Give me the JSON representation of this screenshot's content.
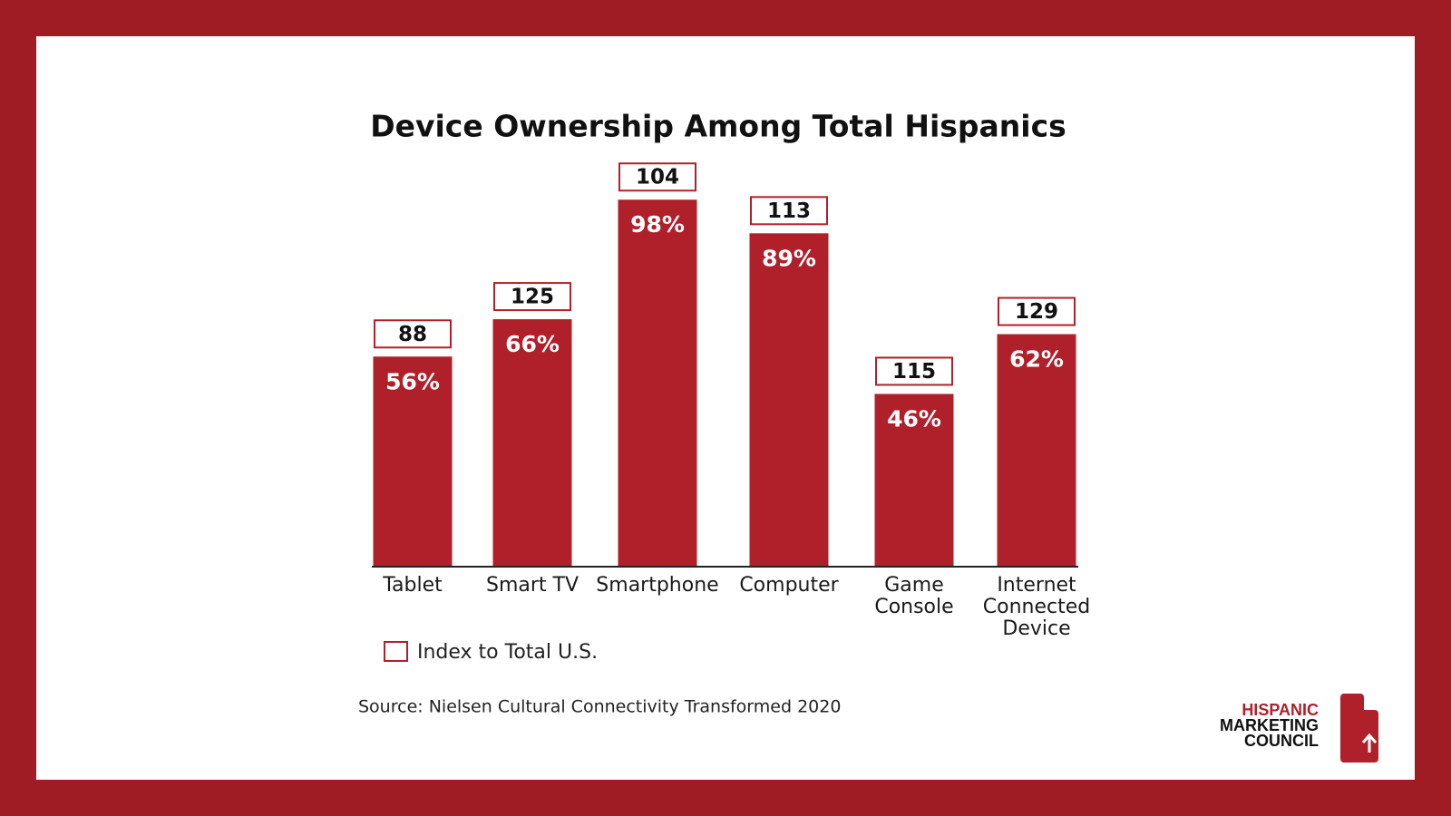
{
  "chart_data": {
    "type": "bar",
    "title": "Device Ownership Among Total Hispanics",
    "categories": [
      "Tablet",
      "Smart TV",
      "Smartphone",
      "Computer",
      "Game Console",
      "Internet Connected Device"
    ],
    "values": [
      56,
      66,
      98,
      89,
      46,
      62
    ],
    "value_labels": [
      "56%",
      "66%",
      "98%",
      "89%",
      "46%",
      "62%"
    ],
    "color": "#b0202a",
    "index": {
      "name": "Index to Total U.S.",
      "values": [
        88,
        125,
        104,
        113,
        115,
        129
      ]
    },
    "source": "Source: Nielsen Cultural Connectivity Transformed 2020"
  },
  "logo": {
    "lines": [
      "HISPANIC",
      "MARKETING",
      "COUNCIL"
    ]
  }
}
